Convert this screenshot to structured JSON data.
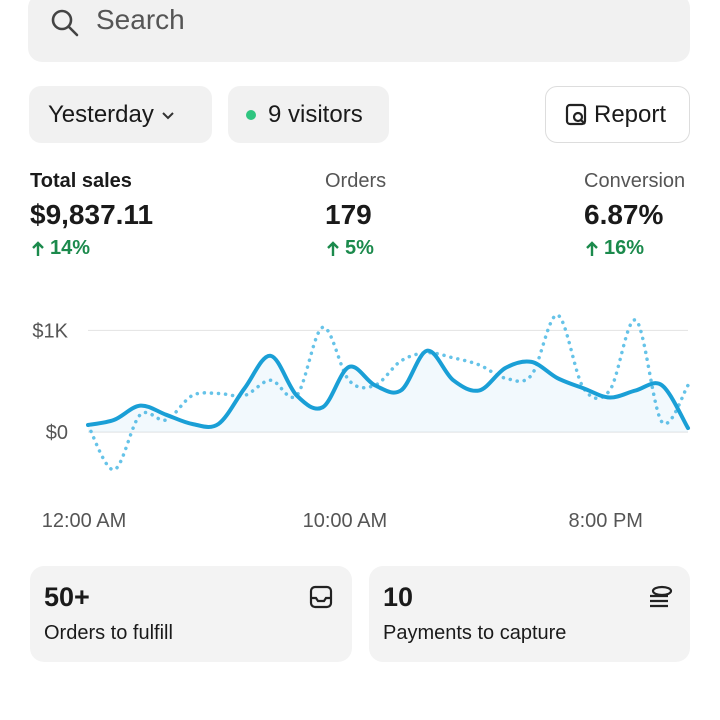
{
  "search": {
    "placeholder": "Search"
  },
  "filters": {
    "date": "Yesterday",
    "visitors": "9 visitors",
    "report": "Report"
  },
  "metrics": [
    {
      "label": "Total sales",
      "value": "$9,837.11",
      "change": "14%"
    },
    {
      "label": "Orders",
      "value": "179",
      "change": "5%"
    },
    {
      "label": "Conversion",
      "value": "6.87%",
      "change": "16%"
    }
  ],
  "chart_data": {
    "type": "line",
    "categories": [
      "12:00 AM",
      null,
      null,
      null,
      null,
      null,
      null,
      null,
      null,
      null,
      "10:00 AM",
      null,
      null,
      null,
      null,
      null,
      null,
      null,
      null,
      null,
      "8:00 PM",
      null,
      null,
      null
    ],
    "series": [
      {
        "color": "#1a9fd6",
        "style": "solid",
        "values": [
          70,
          120,
          260,
          170,
          80,
          80,
          430,
          750,
          360,
          245,
          640,
          460,
          410,
          800,
          510,
          410,
          630,
          690,
          530,
          430,
          340,
          410,
          460,
          40
        ]
      },
      {
        "color": "#66c3e8",
        "style": "dotted",
        "values": [
          70,
          -370,
          170,
          120,
          360,
          380,
          360,
          510,
          360,
          1030,
          510,
          460,
          700,
          780,
          730,
          660,
          530,
          560,
          1150,
          430,
          410,
          1100,
          100,
          460
        ]
      }
    ],
    "ylim": [
      -500,
      1200
    ],
    "yticks": [
      {
        "value": 0,
        "label": "$0"
      },
      {
        "value": 1000,
        "label": "$1K"
      }
    ],
    "grid": true
  },
  "cards": [
    {
      "value": "50+",
      "label": "Orders to fulfill"
    },
    {
      "value": "10",
      "label": "Payments to capture"
    }
  ]
}
